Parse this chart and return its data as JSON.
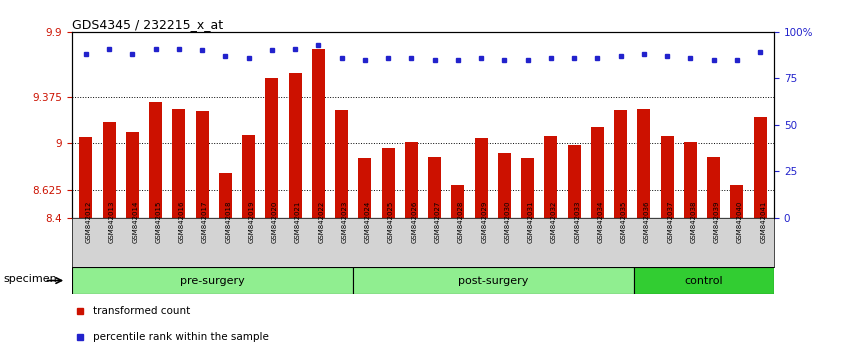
{
  "title": "GDS4345 / 232215_x_at",
  "samples": [
    "GSM842012",
    "GSM842013",
    "GSM842014",
    "GSM842015",
    "GSM842016",
    "GSM842017",
    "GSM842018",
    "GSM842019",
    "GSM842020",
    "GSM842021",
    "GSM842022",
    "GSM842023",
    "GSM842024",
    "GSM842025",
    "GSM842026",
    "GSM842027",
    "GSM842028",
    "GSM842029",
    "GSM842030",
    "GSM842031",
    "GSM842032",
    "GSM842033",
    "GSM842034",
    "GSM842035",
    "GSM842036",
    "GSM842037",
    "GSM842038",
    "GSM842039",
    "GSM842040",
    "GSM842041"
  ],
  "bar_values": [
    9.05,
    9.17,
    9.09,
    9.33,
    9.28,
    9.26,
    8.76,
    9.07,
    9.53,
    9.57,
    9.76,
    9.27,
    8.88,
    8.96,
    9.01,
    8.89,
    8.66,
    9.04,
    8.92,
    8.88,
    9.06,
    8.99,
    9.13,
    9.27,
    9.28,
    9.06,
    9.01,
    8.89,
    8.66,
    9.21
  ],
  "percentile_values_pct": [
    88,
    91,
    88,
    91,
    91,
    90,
    87,
    86,
    90,
    91,
    93,
    86,
    85,
    86,
    86,
    85,
    85,
    86,
    85,
    85,
    86,
    86,
    86,
    87,
    88,
    87,
    86,
    85,
    85,
    89
  ],
  "groups": [
    {
      "label": "pre-surgery",
      "start": 0,
      "end": 12,
      "color": "#90ee90"
    },
    {
      "label": "post-surgery",
      "start": 12,
      "end": 24,
      "color": "#90ee90"
    },
    {
      "label": "control",
      "start": 24,
      "end": 30,
      "color": "#32cd32"
    }
  ],
  "ylim_left": [
    8.4,
    9.9
  ],
  "ylim_right": [
    0,
    100
  ],
  "yticks_left": [
    8.4,
    8.625,
    9.0,
    9.375,
    9.9
  ],
  "ytick_labels_left": [
    "8.4",
    "8.625",
    "9",
    "9.375",
    "9.9"
  ],
  "yticks_right": [
    0,
    25,
    50,
    75,
    100
  ],
  "ytick_labels_right": [
    "0",
    "25",
    "50",
    "75",
    "100%"
  ],
  "bar_color": "#cc1100",
  "dot_color": "#2222cc",
  "bg_color": "#ffffff",
  "plot_bg_color": "#ffffff",
  "grid_color": "#000000",
  "legend_items": [
    {
      "label": "transformed count",
      "color": "#cc1100"
    },
    {
      "label": "percentile rank within the sample",
      "color": "#2222cc"
    }
  ],
  "specimen_label": "specimen",
  "group_bg_color": "#90ee90",
  "control_bg_color": "#32cd32",
  "tick_label_color_left": "#cc1100",
  "tick_label_color_right": "#2222cc",
  "xtick_bg_color": "#d3d3d3"
}
